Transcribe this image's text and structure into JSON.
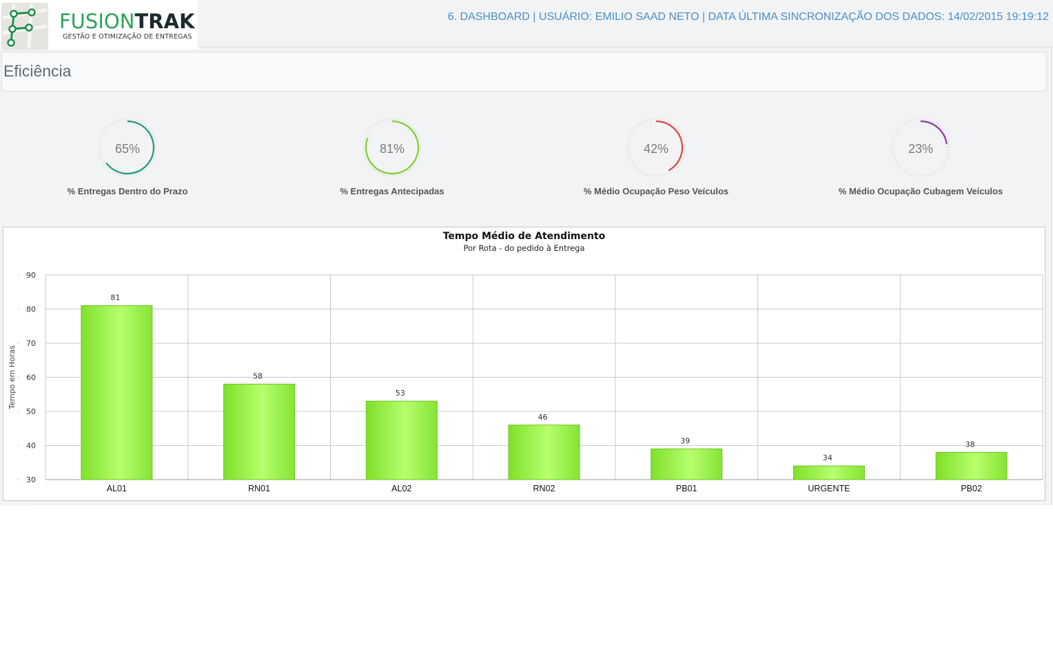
{
  "header": {
    "logo_name_part1": "FUSION",
    "logo_name_part2": "TRAK",
    "logo_tagline": "GESTÃO E OTIMIZAÇÃO DE ENTREGAS",
    "info": "6. DASHBOARD | USUÁRIO: EMILIO SAAD NETO | DATA ÚLTIMA SINCRONIZAÇÃO DOS DADOS: 14/02/2015 19:19:12"
  },
  "page": {
    "title": "Eficiência"
  },
  "gauges": [
    {
      "value_label": "65%",
      "value": 65,
      "label": "% Entregas Dentro do Prazo",
      "color": "#1a9b78"
    },
    {
      "value_label": "81%",
      "value": 81,
      "label": "% Entregas Antecipadas",
      "color": "#7dd02b"
    },
    {
      "value_label": "42%",
      "value": 42,
      "label": "% Médio Ocupação Peso Veículos",
      "color": "#e04444"
    },
    {
      "value_label": "23%",
      "value": 23,
      "label": "% Médio Ocupação Cubagem Veículos",
      "color": "#8a3a9e"
    }
  ],
  "chart_data": {
    "type": "bar",
    "title": "Tempo Médio de Atendimento",
    "subtitle": "Por Rota - do pedido à Entrega",
    "xlabel": "",
    "ylabel": "Tempo em Horas",
    "categories": [
      "AL01",
      "RN01",
      "AL02",
      "RN02",
      "PB01",
      "URGENTE",
      "PB02"
    ],
    "values": [
      81,
      58,
      53,
      46,
      39,
      34,
      38
    ],
    "ylim": [
      30,
      90
    ],
    "yticks": [
      30,
      40,
      50,
      60,
      70,
      80,
      90
    ],
    "grid": true,
    "bar_color": "#8fe83a"
  }
}
